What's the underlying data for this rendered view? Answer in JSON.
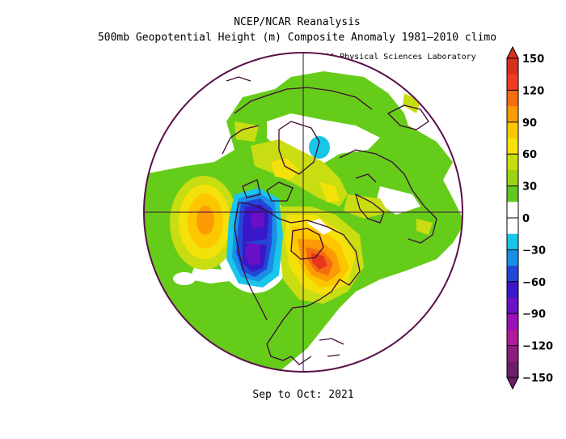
{
  "header": {
    "title": "NCEP/NCAR Reanalysis",
    "subtitle": "500mb Geopotential Height (m) Composite Anomaly 1981–2010 climo",
    "credit": "NOAA Physical Sciences Laboratory"
  },
  "footer": {
    "date_range": "Sep to Oct: 2021"
  },
  "colorbar": {
    "ticks": [
      "150",
      "120",
      "90",
      "60",
      "30",
      "0",
      "−30",
      "−60",
      "−90",
      "−120",
      "−150"
    ],
    "colors": [
      "#d7301f",
      "#f03b20",
      "#f46d0e",
      "#fd9b06",
      "#fdc700",
      "#f6e20a",
      "#c8dd0e",
      "#9cd413",
      "#63c821",
      "#ffffff",
      "#ffffff",
      "#19c6e8",
      "#1a8fe6",
      "#2247d8",
      "#3a18c9",
      "#6a10c6",
      "#9a0fb8",
      "#b01a9c",
      "#8e1c7e",
      "#6c1e6b"
    ]
  },
  "map": {
    "projection": "north-polar-stereographic",
    "palette": {
      "ring": "#5a0f4a",
      "coast": "#3c0a36",
      "green": "#66cc1a",
      "yellow_green": "#c8dd12",
      "yellow": "#f4e10a",
      "light_orange": "#fdc700",
      "orange": "#fd9b06",
      "dark_orange": "#f46d0e",
      "red": "#e8361b",
      "cyan": "#19c6e8",
      "light_blue": "#1a8fe6",
      "blue": "#2247d8",
      "dark_blue": "#3a18c9",
      "purple": "#6a10c6"
    }
  }
}
